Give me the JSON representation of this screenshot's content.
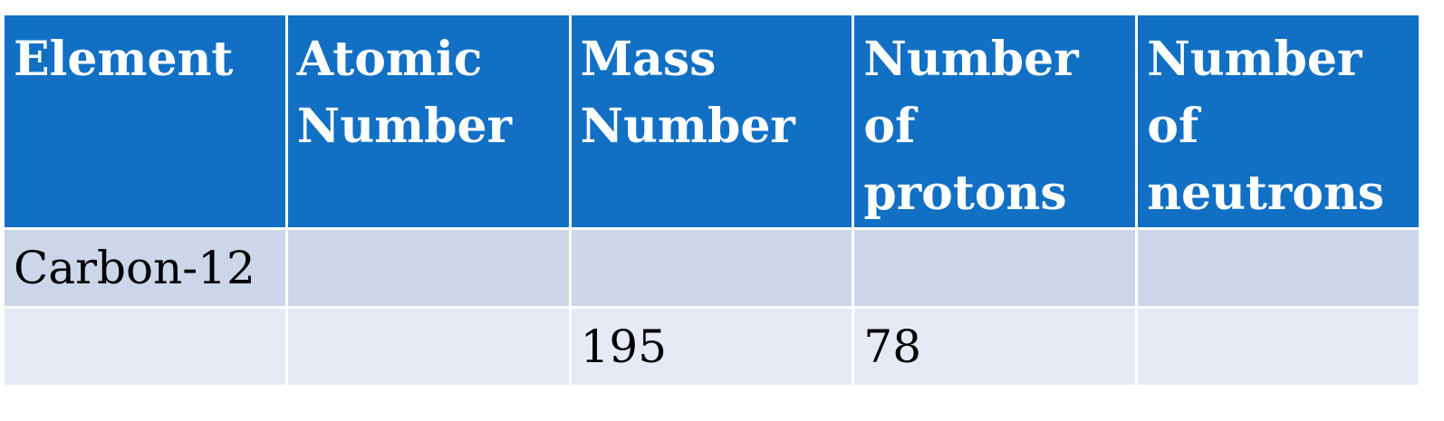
{
  "table": {
    "headers": [
      [
        "Element"
      ],
      [
        "Atomic",
        "Number"
      ],
      [
        "Mass",
        "Number"
      ],
      [
        "Number",
        "of",
        "protons"
      ],
      [
        "Number",
        "of",
        "neutrons"
      ]
    ],
    "rows": [
      [
        "Carbon-12",
        "",
        "",
        "",
        ""
      ],
      [
        "",
        "",
        "195",
        "78",
        ""
      ]
    ],
    "colors": {
      "header_bg": "#1170c4",
      "header_text": "#ffffff",
      "row_odd_bg": "#cdd5e9",
      "row_even_bg": "#e7eaf5",
      "border": "#ffffff"
    }
  }
}
